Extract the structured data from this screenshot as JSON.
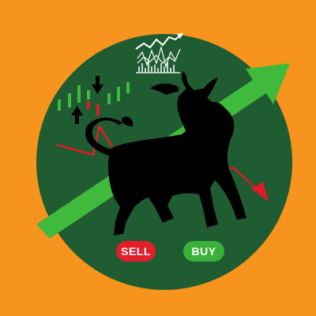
{
  "colors": {
    "background": "#f7941d",
    "circle": "#1f5c32",
    "trend_up": "#3fba3c",
    "trend_down": "#e21c26",
    "bull": "#000000",
    "sell_button": "#e41e2b",
    "buy_button": "#39b13a"
  },
  "buttons": {
    "sell_label": "SELL",
    "buy_label": "BUY"
  },
  "icons": [
    "trend-up-arrow-icon",
    "trend-down-arrow-icon",
    "bull-icon",
    "mini-chart-icon",
    "candlestick-icon",
    "arrow-up-icon",
    "arrow-down-icon"
  ]
}
